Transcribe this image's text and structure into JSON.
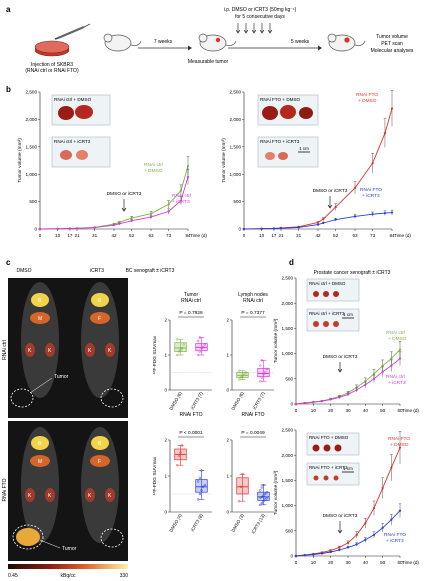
{
  "panel_a": {
    "letter": "a",
    "injection": [
      "Injection of SKBR3",
      "(RNAi ctrl or RNAi FTO)"
    ],
    "step1": "7 weeks",
    "tumor": "Measurable tumor",
    "treatment": [
      "i.p. DMSO or iCRT3 (50mg kg⁻¹)",
      "for 5 consecutive days"
    ],
    "step2": "5 weeks",
    "endpoints": [
      "Tumor volume",
      "PET scan",
      "Molecular analyses"
    ]
  },
  "panel_b": {
    "letter": "b",
    "left": {
      "photo_labels": [
        "RNAi ctrl + DMSO",
        "RNAi ctrl + iCRT3"
      ],
      "arrow_label": "DMSO or iCRT3",
      "legend": [
        {
          "text": [
            "RNAi ctrl",
            "+ DMSO"
          ],
          "color": "#7cb342"
        },
        {
          "text": [
            "RNAi ctrl",
            "+ iCRT3"
          ],
          "color": "#d63ad6"
        }
      ]
    },
    "right": {
      "photo_labels": [
        "RNAi FTO + DMSO",
        "RNAi FTO + iCRT3"
      ],
      "scale_bar": "1 cm",
      "arrow_label": "DMSO or iCRT3",
      "legend": [
        {
          "text": [
            "RNAi FTO",
            "+ DMSO"
          ],
          "color": "#e0302a"
        },
        {
          "text": [
            "RNAi FTO",
            "+ iCRT3"
          ],
          "color": "#2a3ed6"
        }
      ]
    }
  },
  "panel_c": {
    "letter": "c",
    "title": "BC xenograft ± iCRT3",
    "col_labels": [
      "DMSO",
      "iCRT3"
    ],
    "row_labels": [
      "RNAi ctrl",
      "RNAi FTO"
    ],
    "organ_marks": [
      "B",
      "B",
      "M",
      "F",
      "K",
      "K",
      "K",
      "K",
      "B",
      "B",
      "M",
      "F",
      "K",
      "K",
      "K",
      "K"
    ],
    "tumor_label": "Tumor",
    "colorbar": {
      "min": "0.45",
      "unit": "kBq/cc",
      "max": "330"
    },
    "ylabel": "¹⁸F-FDG SUVmax",
    "boxes": [
      {
        "title": [
          "Tumor",
          "RNAi ctrl"
        ],
        "p": "P = 0.7926",
        "x": [
          "DMSO (6)",
          "iCRT3 (7)"
        ]
      },
      {
        "title": [
          "Lymph nodes",
          "RNAi ctrl"
        ],
        "p": "P = 0.7377",
        "x": [
          "DMSO (6)",
          "iCRT3 (7)"
        ]
      },
      {
        "title": [
          "RNAi FTO"
        ],
        "p": "P < 0.0001",
        "x": [
          "DMSO (4)",
          "iCRT3 (8)"
        ]
      },
      {
        "title": [
          "RNAi FTO"
        ],
        "p": "P = 0.0049",
        "x": [
          "DMSO (3)",
          "iCRT3 (13)"
        ]
      }
    ]
  },
  "panel_d": {
    "letter": "d",
    "title": "Prostate cancer xenograft ± iCRT3",
    "top": {
      "photo_labels": [
        "RNAi ctrl + DMSO",
        "RNAi ctrl + iCRT3"
      ],
      "scale_bar": "1 cm",
      "arrow_label": "DMSO or iCRT3",
      "legend": [
        {
          "text": [
            "RNAi ctrl",
            "+ DMSO"
          ],
          "color": "#7cb342"
        },
        {
          "text": [
            "RNAi ctrl",
            "+ iCRT3"
          ],
          "color": "#d63ad6"
        }
      ]
    },
    "bottom": {
      "photo_labels": [
        "RNAi FTO + DMSO",
        "RNAi FTO + iCRT3"
      ],
      "scale_bar": "1 cm",
      "arrow_label": "DMSO or iCRT3",
      "legend": [
        {
          "text": [
            "RNAi FTO",
            "+ DMSO"
          ],
          "color": "#e0302a"
        },
        {
          "text": [
            "RNAi FTO",
            "+ iCRT3"
          ],
          "color": "#2a3ed6"
        }
      ]
    }
  },
  "chart_data": [
    {
      "type": "line",
      "panel": "b-left",
      "xlabel": "Time (d)",
      "ylabel": "Tumor volume (mm³)",
      "x": [
        0,
        10,
        17,
        21,
        31,
        42,
        45,
        52,
        63,
        73,
        80,
        84
      ],
      "x_ticks": [
        0,
        10,
        17,
        21,
        31,
        42,
        52,
        63,
        73,
        84
      ],
      "ylim": [
        0,
        2500
      ],
      "y_ticks": [
        0,
        500,
        1000,
        1500,
        2000,
        2500
      ],
      "series": [
        {
          "name": "RNAi ctrl + DMSO",
          "color": "#7cb342",
          "values": [
            0,
            5,
            10,
            15,
            30,
            90,
            120,
            200,
            280,
            450,
            700,
            1150
          ]
        },
        {
          "name": "RNAi ctrl + iCRT3",
          "color": "#d63ad6",
          "values": [
            0,
            5,
            10,
            12,
            25,
            70,
            95,
            150,
            220,
            320,
            520,
            950
          ]
        }
      ]
    },
    {
      "type": "line",
      "panel": "b-right",
      "xlabel": "Time (d)",
      "ylabel": "Tumor volume (mm³)",
      "x": [
        0,
        10,
        17,
        21,
        31,
        42,
        45,
        52,
        63,
        73,
        80,
        84
      ],
      "x_ticks": [
        0,
        10,
        17,
        21,
        31,
        42,
        52,
        63,
        73,
        84
      ],
      "ylim": [
        0,
        2500
      ],
      "y_ticks": [
        0,
        500,
        1000,
        1500,
        2000,
        2500
      ],
      "series": [
        {
          "name": "RNAi FTO + DMSO",
          "color": "#e0302a",
          "values": [
            0,
            5,
            10,
            20,
            40,
            120,
            180,
            400,
            750,
            1200,
            1750,
            2200
          ]
        },
        {
          "name": "RNAi FTO + iCRT3",
          "color": "#2a3ed6",
          "values": [
            0,
            5,
            10,
            15,
            30,
            80,
            110,
            170,
            230,
            270,
            290,
            300
          ]
        }
      ]
    },
    {
      "type": "line",
      "panel": "d-top",
      "xlabel": "Time (d)",
      "ylabel": "Tumor volume (mm³)",
      "x": [
        0,
        5,
        10,
        15,
        20,
        25,
        30,
        35,
        40,
        45,
        50,
        55,
        60
      ],
      "x_ticks": [
        0,
        10,
        20,
        30,
        40,
        50,
        60
      ],
      "ylim": [
        0,
        2500
      ],
      "y_ticks": [
        0,
        500,
        1000,
        1500,
        2000,
        2500
      ],
      "series": [
        {
          "name": "RNAi ctrl + DMSO",
          "color": "#7cb342",
          "values": [
            0,
            20,
            40,
            60,
            100,
            150,
            220,
            330,
            450,
            600,
            760,
            900,
            1080
          ]
        },
        {
          "name": "RNAi ctrl + iCRT3",
          "color": "#d63ad6",
          "values": [
            0,
            20,
            35,
            55,
            90,
            130,
            190,
            280,
            380,
            500,
            640,
            760,
            900
          ]
        }
      ]
    },
    {
      "type": "line",
      "panel": "d-bottom",
      "xlabel": "Time (d)",
      "ylabel": "Tumor volume (mm³)",
      "x": [
        0,
        5,
        10,
        15,
        20,
        25,
        30,
        35,
        40,
        45,
        50,
        55,
        60
      ],
      "x_ticks": [
        0,
        10,
        20,
        30,
        40,
        50,
        60
      ],
      "ylim": [
        0,
        2500
      ],
      "y_ticks": [
        0,
        500,
        1000,
        1500,
        2000,
        2500
      ],
      "series": [
        {
          "name": "RNAi FTO + DMSO",
          "color": "#e0302a",
          "values": [
            0,
            20,
            40,
            70,
            110,
            170,
            260,
            420,
            650,
            950,
            1350,
            1750,
            2150
          ]
        },
        {
          "name": "RNAi FTO + iCRT3",
          "color": "#2a3ed6",
          "values": [
            0,
            15,
            30,
            50,
            80,
            120,
            170,
            230,
            320,
            420,
            560,
            720,
            900
          ]
        }
      ]
    },
    {
      "type": "box",
      "panel": "c-tumor-ctrl",
      "ylabel": "¹⁸F-FDG SUVmax",
      "ylim": [
        0,
        2
      ],
      "y_ticks": [
        0,
        1,
        2
      ],
      "categories": [
        "DMSO (6)",
        "iCRT3 (7)"
      ],
      "colors": [
        "#7cb342",
        "#d63ad6"
      ],
      "boxes": [
        {
          "min": 1.0,
          "q1": 1.1,
          "median": 1.2,
          "q3": 1.35,
          "max": 1.45,
          "points": [
            1.0,
            1.1,
            1.15,
            1.2,
            1.3,
            1.45
          ]
        },
        {
          "min": 1.0,
          "q1": 1.12,
          "median": 1.22,
          "q3": 1.33,
          "max": 1.5,
          "points": [
            1.0,
            1.1,
            1.2,
            1.22,
            1.3,
            1.4,
            1.5
          ]
        }
      ]
    },
    {
      "type": "box",
      "panel": "c-lymph-ctrl",
      "ylabel": "¹⁸F-FDG SUVmax",
      "ylim": [
        0,
        2
      ],
      "y_ticks": [
        0,
        1,
        2
      ],
      "categories": [
        "DMSO (6)",
        "iCRT3 (7)"
      ],
      "colors": [
        "#7cb342",
        "#d63ad6"
      ],
      "boxes": [
        {
          "min": 0.3,
          "q1": 0.36,
          "median": 0.42,
          "q3": 0.5,
          "max": 0.55,
          "points": [
            0.3,
            0.36,
            0.4,
            0.44,
            0.5,
            0.55
          ]
        },
        {
          "min": 0.25,
          "q1": 0.38,
          "median": 0.47,
          "q3": 0.62,
          "max": 0.85,
          "points": [
            0.25,
            0.35,
            0.45,
            0.5,
            0.6,
            0.7,
            0.85
          ]
        }
      ]
    },
    {
      "type": "box",
      "panel": "c-tumor-fto",
      "ylabel": "¹⁸F-FDG SUVmax",
      "ylim": [
        0,
        2
      ],
      "y_ticks": [
        0,
        1,
        2
      ],
      "categories": [
        "DMSO (4)",
        "iCRT3 (8)"
      ],
      "colors": [
        "#e0302a",
        "#2a3ed6"
      ],
      "boxes": [
        {
          "min": 1.3,
          "q1": 1.45,
          "median": 1.6,
          "q3": 1.75,
          "max": 1.85,
          "points": [
            1.3,
            1.55,
            1.65,
            1.85
          ]
        },
        {
          "min": 0.35,
          "q1": 0.55,
          "median": 0.7,
          "q3": 0.9,
          "max": 1.15,
          "points": [
            0.35,
            0.5,
            0.6,
            0.7,
            0.75,
            0.85,
            0.95,
            1.15
          ]
        }
      ]
    },
    {
      "type": "box",
      "panel": "c-lymph-fto",
      "ylabel": "¹⁸F-FDG SUVmax",
      "ylim": [
        0,
        2
      ],
      "y_ticks": [
        0,
        1,
        2
      ],
      "categories": [
        "DMSO (3)",
        "iCRT3 (13)"
      ],
      "colors": [
        "#e0302a",
        "#2a3ed6"
      ],
      "boxes": [
        {
          "min": 0.3,
          "q1": 0.5,
          "median": 0.7,
          "q3": 0.95,
          "max": 1.05,
          "points": [
            0.3,
            0.7,
            1.05
          ]
        },
        {
          "min": 0.2,
          "q1": 0.32,
          "median": 0.42,
          "q3": 0.55,
          "max": 0.75,
          "points": [
            0.2,
            0.25,
            0.3,
            0.35,
            0.38,
            0.4,
            0.42,
            0.45,
            0.5,
            0.55,
            0.6,
            0.68,
            0.75
          ]
        }
      ]
    }
  ]
}
